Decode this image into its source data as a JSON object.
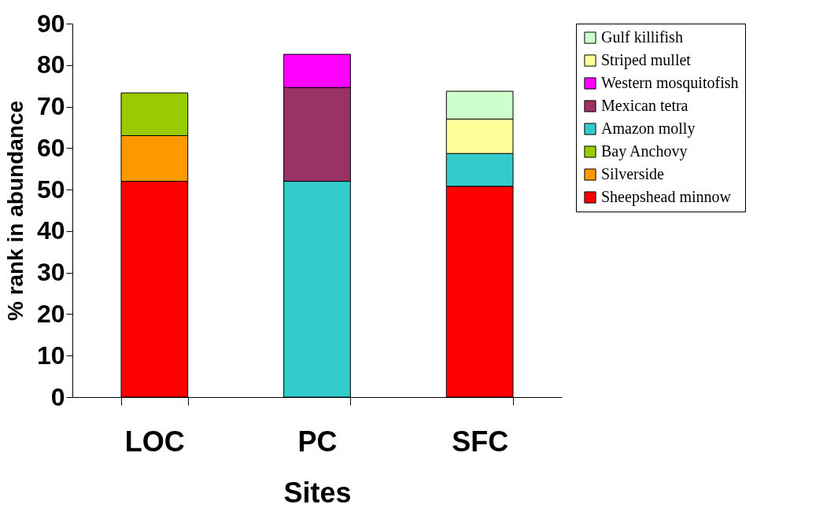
{
  "chart_data": {
    "type": "bar",
    "stacked": true,
    "xlabel": "Sites",
    "ylabel": "% rank in abundance",
    "categories": [
      "LOC",
      "PC",
      "SFC"
    ],
    "ylim": [
      0,
      90
    ],
    "yticks": [
      0,
      10,
      20,
      30,
      40,
      50,
      60,
      70,
      80,
      90
    ],
    "grid": false,
    "legend": "right",
    "series": [
      {
        "name": "Sheepshead minnow",
        "color": "#ff0000",
        "values": [
          52,
          null,
          50.8
        ]
      },
      {
        "name": "Silverside",
        "color": "#ff9900",
        "values": [
          11,
          null,
          null
        ]
      },
      {
        "name": "Bay Anchovy",
        "color": "#99cc00",
        "values": [
          10.3,
          null,
          null
        ]
      },
      {
        "name": "Amazon molly",
        "color": "#33cccc",
        "values": [
          null,
          52,
          7.9
        ]
      },
      {
        "name": "Mexican tetra",
        "color": "#993366",
        "values": [
          null,
          22.6,
          null
        ]
      },
      {
        "name": "Western mosquitofish",
        "color": "#ff00ff",
        "values": [
          null,
          8,
          null
        ]
      },
      {
        "name": "Striped mullet",
        "color": "#ffff99",
        "values": [
          null,
          null,
          8.3
        ]
      },
      {
        "name": "Gulf killifish",
        "color": "#ccffcc",
        "values": [
          null,
          null,
          6.7
        ]
      }
    ]
  }
}
